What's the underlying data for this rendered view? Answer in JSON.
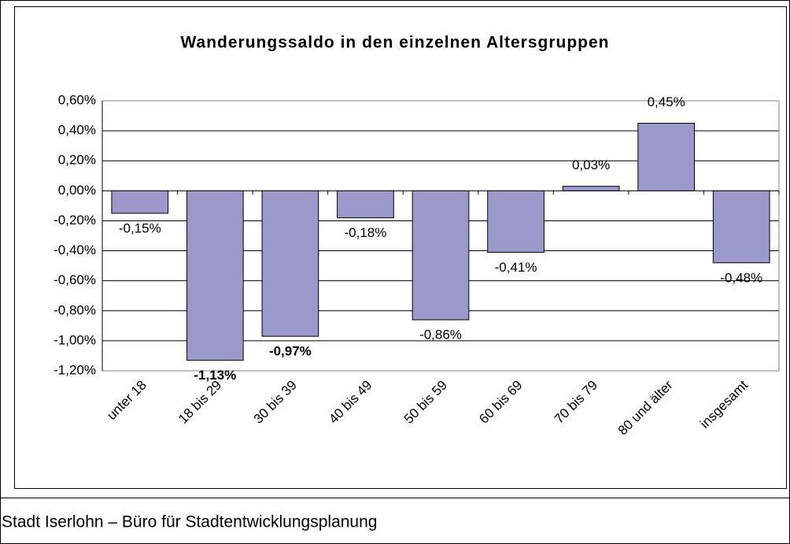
{
  "chart_data": {
    "type": "bar",
    "title": "Wanderungssaldo in den einzelnen Altersgruppen",
    "categories": [
      "unter 18",
      "18 bis 29",
      "30 bis 39",
      "40 bis 49",
      "50 bis 59",
      "60 bis 69",
      "70 bis 79",
      "80 und älter",
      "insgesamt"
    ],
    "values": [
      -0.15,
      -1.13,
      -0.97,
      -0.18,
      -0.86,
      -0.41,
      0.03,
      0.45,
      -0.48
    ],
    "value_labels": [
      "-0,15%",
      "-1,13%",
      "-0,97%",
      "-0,18%",
      "-0,86%",
      "-0,41%",
      "0,03%",
      "0,45%",
      "-0,48%"
    ],
    "value_label_bold": [
      false,
      true,
      true,
      false,
      false,
      false,
      false,
      false,
      false
    ],
    "color": "#9b99cc",
    "ylim": [
      -1.2,
      0.6
    ],
    "yticks": [
      {
        "value": -1.2,
        "label": "-1,20%"
      },
      {
        "value": -1.0,
        "label": "-1,00%"
      },
      {
        "value": -0.8,
        "label": "-0,80%"
      },
      {
        "value": -0.6,
        "label": "-0,60%"
      },
      {
        "value": -0.4,
        "label": "-0,40%"
      },
      {
        "value": -0.2,
        "label": "-0,20%"
      },
      {
        "value": 0.0,
        "label": "0,00%"
      },
      {
        "value": 0.2,
        "label": "0,20%"
      },
      {
        "value": 0.4,
        "label": "0,40%"
      },
      {
        "value": 0.6,
        "label": "0,60%"
      }
    ],
    "grid": true
  },
  "footer": "Stadt Iserlohn – Büro für Stadtentwicklungsplanung"
}
